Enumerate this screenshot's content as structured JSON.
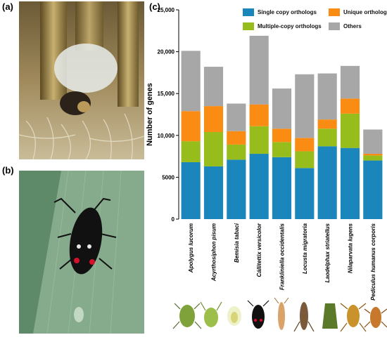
{
  "panels": {
    "a": "(a)",
    "b": "(b)",
    "c": "(c)"
  },
  "colors": {
    "single": "#1a86bb",
    "multiple": "#96bd1c",
    "unique": "#fb8c13",
    "others": "#a7a7a7"
  },
  "chart_data": {
    "type": "bar",
    "stacked": true,
    "categories": [
      "Apolygus lucorum",
      "Acyrthosiphon pisum",
      "Bemisia tabaci",
      "Cállitettix versicolor",
      "Frankliniella occidentalis",
      "Locusta migratoria",
      "Laodelphax striatellus",
      "Nilaparvata lugens",
      "Pediculus humanus corporis"
    ],
    "series": [
      {
        "name": "Single copy orthologs",
        "color": "#1a86bb",
        "values": [
          6800,
          6300,
          7100,
          7800,
          7400,
          6100,
          8700,
          8500,
          7000
        ]
      },
      {
        "name": "Multiple-copy orthologs",
        "color": "#96bd1c",
        "values": [
          2500,
          4100,
          1800,
          3300,
          1800,
          2000,
          2100,
          4100,
          600
        ]
      },
      {
        "name": "Unique orthologs",
        "color": "#fb8c13",
        "values": [
          3600,
          3100,
          1600,
          2600,
          1600,
          1600,
          1100,
          1800,
          200
        ]
      },
      {
        "name": "Others",
        "color": "#a7a7a7",
        "values": [
          7200,
          4700,
          3300,
          8200,
          4800,
          7600,
          5500,
          3900,
          2900
        ]
      }
    ],
    "ylabel": "Number of genes",
    "ylim": [
      0,
      25000
    ],
    "yticks": [
      0,
      5000,
      10000,
      15000,
      20000,
      25000
    ],
    "ytick_labels": [
      "0",
      "5000",
      "10,000",
      "15,000",
      "20,000",
      "25,000"
    ],
    "legend_position": "top-right",
    "grid": false
  }
}
